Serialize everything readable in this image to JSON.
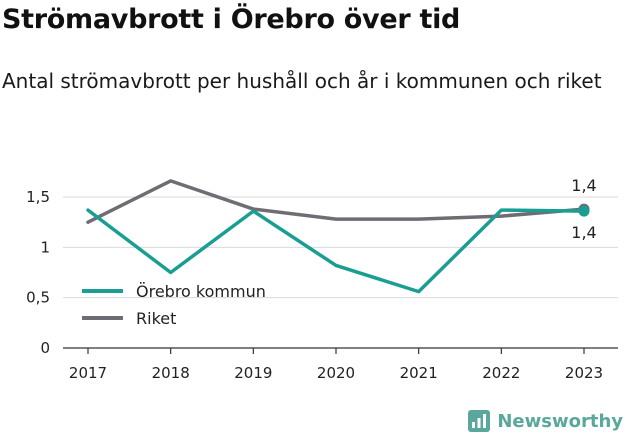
{
  "header": {
    "title": "Strömavbrott i Örebro över tid",
    "subtitle": "Antal strömavbrott per hushåll och år i kommunen och riket"
  },
  "branding": {
    "name": "Newsworthy",
    "icon": "bar-chart-logo-icon"
  },
  "colors": {
    "orebro": "#1a9e94",
    "riket": "#706c74",
    "grid": "#d9d9d9",
    "axis": "#333333"
  },
  "chart_data": {
    "type": "line",
    "categories": [
      "2017",
      "2018",
      "2019",
      "2020",
      "2021",
      "2022",
      "2023"
    ],
    "ylim": [
      0,
      1.5
    ],
    "yticks": [
      0,
      0.5,
      1,
      1.5
    ],
    "ytick_labels": [
      "0",
      "0,5",
      "1",
      "1,5"
    ],
    "grid": "horizontal",
    "legend_position": "bottom-left",
    "series": [
      {
        "name": "Örebro kommun",
        "color": "#1a9e94",
        "values": [
          1.37,
          0.75,
          1.36,
          0.82,
          0.56,
          1.37,
          1.36
        ]
      },
      {
        "name": "Riket",
        "color": "#706c74",
        "values": [
          1.25,
          1.66,
          1.38,
          1.28,
          1.28,
          1.31,
          1.38
        ]
      }
    ],
    "end_labels": {
      "riket": "1,4",
      "orebro": "1,4"
    }
  }
}
